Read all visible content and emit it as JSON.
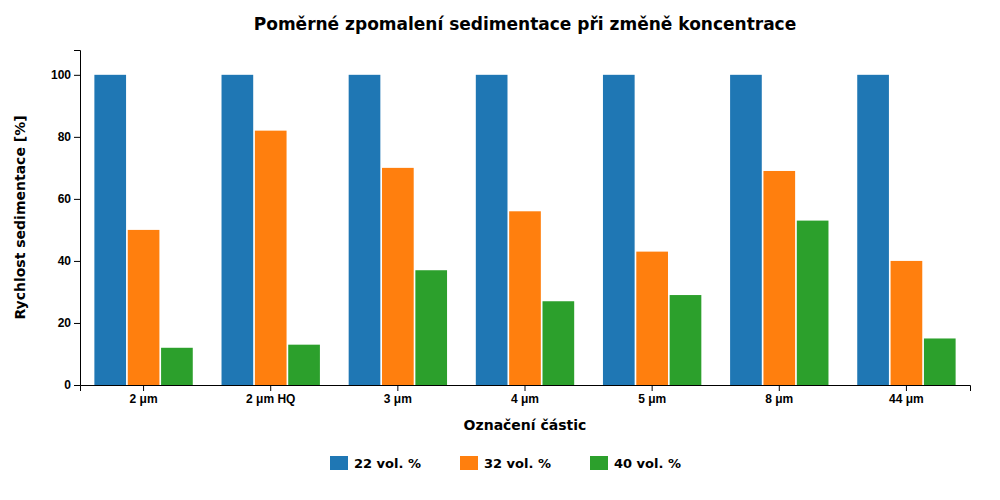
{
  "chart_data": {
    "type": "bar",
    "title": "Poměrné zpomalení sedimentace při změně koncentrace",
    "xlabel": "Označení částic",
    "ylabel": "Rychlost sedimentace [%]",
    "categories": [
      "2 μm",
      "2 μm HQ",
      "3 μm",
      "4 μm",
      "5 μm",
      "8 μm",
      "44 μm"
    ],
    "series": [
      {
        "name": "22 vol. %",
        "values": [
          100,
          100,
          100,
          100,
          100,
          100,
          100
        ]
      },
      {
        "name": "32 vol. %",
        "values": [
          50,
          82,
          70,
          56,
          43,
          69,
          40
        ]
      },
      {
        "name": "40 vol. %",
        "values": [
          12,
          13,
          37,
          27,
          29,
          53,
          15
        ]
      }
    ],
    "ylim": [
      0,
      108
    ],
    "yticks": [
      0,
      20,
      40,
      60,
      80,
      100
    ],
    "grid": false,
    "legend": "bottom"
  }
}
